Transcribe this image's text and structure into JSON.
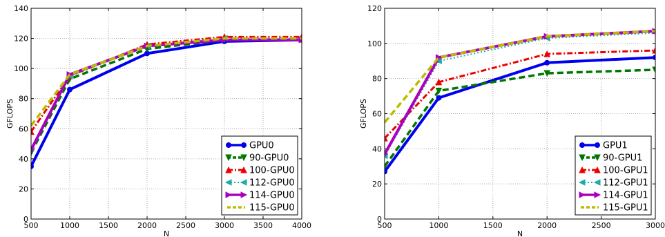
{
  "chart_data": [
    {
      "type": "line",
      "title": "",
      "xlabel": "N",
      "ylabel": "GFLOPS",
      "xlim": [
        500,
        4000
      ],
      "ylim": [
        0,
        140
      ],
      "xticks": [
        "500",
        "1000",
        "1500",
        "2000",
        "2500",
        "3000",
        "3500",
        "4000"
      ],
      "yticks": [
        "0",
        "20",
        "40",
        "60",
        "80",
        "100",
        "120",
        "140"
      ],
      "grid": true,
      "legend_position": "lower-right",
      "x": [
        500,
        1000,
        2000,
        3000,
        4000
      ],
      "series": [
        {
          "name": "GPU0",
          "values": [
            35,
            86,
            110,
            118,
            119
          ],
          "color": "#0000ee",
          "dash": "solid",
          "marker": "circle",
          "width": 4
        },
        {
          "name": "90-GPU0",
          "values": [
            44,
            93,
            113,
            119,
            119
          ],
          "color": "#007700",
          "dash": "dashed",
          "marker": "triangle-down",
          "width": 3.5
        },
        {
          "name": "100-GPU0",
          "values": [
            58,
            95,
            116,
            121,
            121
          ],
          "color": "#ee0000",
          "dash": "dashdot",
          "marker": "triangle-up",
          "width": 3
        },
        {
          "name": "112-GPU0",
          "values": [
            47,
            95,
            115,
            120,
            120
          ],
          "color": "#22aaaa",
          "dash": "dotted",
          "marker": "triangle-left",
          "width": 2
        },
        {
          "name": "114-GPU0",
          "values": [
            46,
            96,
            115,
            119,
            119
          ],
          "color": "#aa00bb",
          "dash": "solid",
          "marker": "triangle-right",
          "width": 4
        },
        {
          "name": "115-GPU0",
          "values": [
            62,
            96,
            115,
            120,
            120
          ],
          "color": "#bbbb00",
          "dash": "dashed",
          "marker": "none",
          "width": 3.5
        }
      ]
    },
    {
      "type": "line",
      "title": "",
      "xlabel": "N",
      "ylabel": "GFLOPS",
      "xlim": [
        500,
        3000
      ],
      "ylim": [
        0,
        120
      ],
      "xticks": [
        "500",
        "1000",
        "1500",
        "2000",
        "2500",
        "3000"
      ],
      "yticks": [
        "0",
        "20",
        "40",
        "60",
        "80",
        "100",
        "120"
      ],
      "grid": true,
      "legend_position": "lower-right",
      "x": [
        500,
        1000,
        2000,
        3000
      ],
      "series": [
        {
          "name": "GPU1",
          "values": [
            27,
            69,
            89,
            92
          ],
          "color": "#0000ee",
          "dash": "solid",
          "marker": "circle",
          "width": 4
        },
        {
          "name": "90-GPU1",
          "values": [
            30,
            73,
            83,
            85
          ],
          "color": "#007700",
          "dash": "dashed",
          "marker": "triangle-down",
          "width": 3.5
        },
        {
          "name": "100-GPU1",
          "values": [
            46,
            78,
            94,
            96
          ],
          "color": "#ee0000",
          "dash": "dashdot",
          "marker": "triangle-up",
          "width": 3
        },
        {
          "name": "112-GPU1",
          "values": [
            36,
            90,
            103,
            106
          ],
          "color": "#22aaaa",
          "dash": "dotted",
          "marker": "triangle-left",
          "width": 2
        },
        {
          "name": "114-GPU1",
          "values": [
            37,
            92,
            104,
            107
          ],
          "color": "#aa00bb",
          "dash": "solid",
          "marker": "triangle-right",
          "width": 4
        },
        {
          "name": "115-GPU1",
          "values": [
            55,
            92,
            104,
            107
          ],
          "color": "#bbbb00",
          "dash": "dashed",
          "marker": "none",
          "width": 3.5
        }
      ]
    }
  ]
}
